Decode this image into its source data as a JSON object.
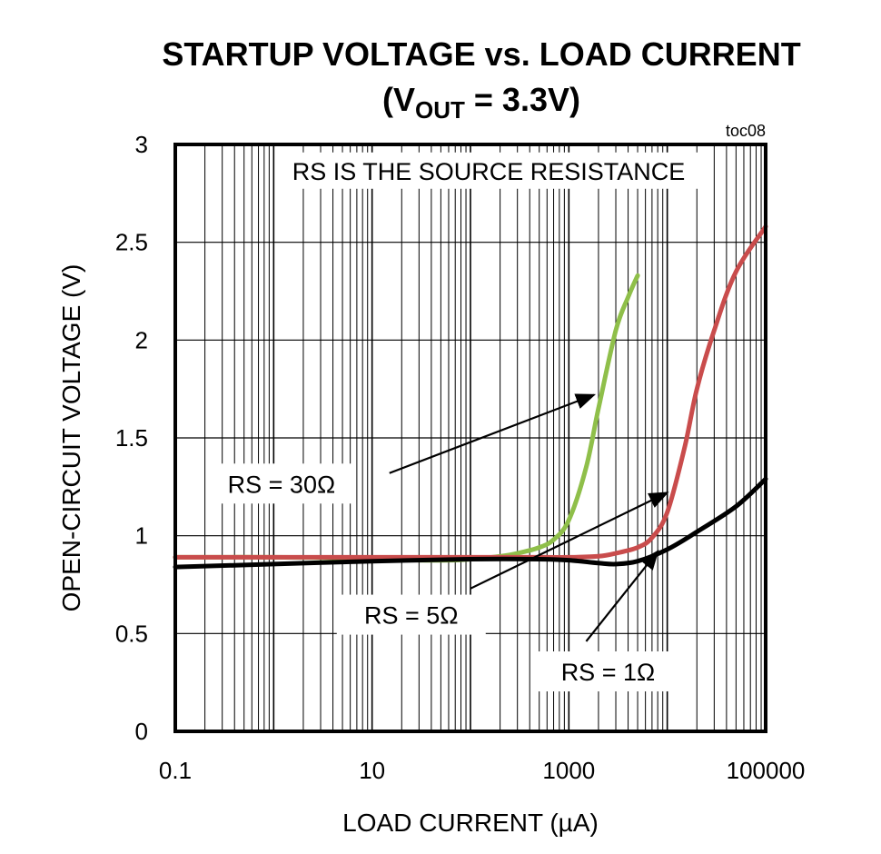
{
  "chart_data": {
    "type": "line",
    "title": "STARTUP VOLTAGE vs. LOAD CURRENT",
    "subtitle": {
      "prefix": "(V",
      "subscript": "OUT",
      "suffix": " = 3.3V)"
    },
    "tag": "toc08",
    "xlabel": "LOAD CURRENT (µA)",
    "ylabel": "OPEN-CIRCUIT VOLTAGE (V)",
    "xscale": "log",
    "xlim": [
      0.1,
      100000
    ],
    "ylim": [
      0,
      3
    ],
    "xticks": [
      {
        "value": 0.1,
        "label": "0.1"
      },
      {
        "value": 10,
        "label": "10"
      },
      {
        "value": 1000,
        "label": "1000"
      },
      {
        "value": 100000,
        "label": "100000"
      }
    ],
    "yticks": [
      {
        "value": 0,
        "label": "0"
      },
      {
        "value": 0.5,
        "label": "0.5"
      },
      {
        "value": 1,
        "label": "1"
      },
      {
        "value": 1.5,
        "label": "1.5"
      },
      {
        "value": 2,
        "label": "2"
      },
      {
        "value": 2.5,
        "label": "2.5"
      },
      {
        "value": 3,
        "label": "3"
      }
    ],
    "grid": true,
    "note": "RS IS THE SOURCE RESISTANCE",
    "series": [
      {
        "name": "RS = 30Ω",
        "color": "#8fbf4a",
        "points": [
          [
            0.1,
            0.89
          ],
          [
            1,
            0.89
          ],
          [
            10,
            0.885
          ],
          [
            30,
            0.875
          ],
          [
            60,
            0.875
          ],
          [
            100,
            0.88
          ],
          [
            200,
            0.895
          ],
          [
            300,
            0.91
          ],
          [
            500,
            0.94
          ],
          [
            700,
            0.98
          ],
          [
            1000,
            1.08
          ],
          [
            1500,
            1.35
          ],
          [
            2000,
            1.65
          ],
          [
            3000,
            2.05
          ],
          [
            4000,
            2.22
          ],
          [
            5000,
            2.33
          ]
        ]
      },
      {
        "name": "RS = 5Ω",
        "color": "#c94c4c",
        "points": [
          [
            0.1,
            0.89
          ],
          [
            1,
            0.89
          ],
          [
            10,
            0.89
          ],
          [
            100,
            0.89
          ],
          [
            500,
            0.89
          ],
          [
            1000,
            0.89
          ],
          [
            2000,
            0.895
          ],
          [
            3000,
            0.91
          ],
          [
            5000,
            0.94
          ],
          [
            7000,
            0.99
          ],
          [
            10000,
            1.12
          ],
          [
            15000,
            1.45
          ],
          [
            20000,
            1.75
          ],
          [
            30000,
            2.05
          ],
          [
            50000,
            2.35
          ],
          [
            100000,
            2.58
          ]
        ]
      },
      {
        "name": "RS = 1Ω",
        "color": "#000000",
        "points": [
          [
            0.1,
            0.84
          ],
          [
            1,
            0.855
          ],
          [
            10,
            0.87
          ],
          [
            100,
            0.88
          ],
          [
            500,
            0.88
          ],
          [
            1000,
            0.875
          ],
          [
            2000,
            0.86
          ],
          [
            3000,
            0.855
          ],
          [
            5000,
            0.87
          ],
          [
            10000,
            0.93
          ],
          [
            20000,
            1.02
          ],
          [
            50000,
            1.15
          ],
          [
            100000,
            1.29
          ]
        ]
      }
    ],
    "annotations": [
      {
        "text": "RS = 30Ω",
        "series": 0,
        "label_at": [
          1.2,
          1.22
        ],
        "arrow_from": [
          15,
          1.32
        ],
        "arrow_to": [
          1800,
          1.72
        ]
      },
      {
        "text": "RS = 5Ω",
        "series": 1,
        "label_at": [
          25,
          0.55
        ],
        "arrow_from": [
          100,
          0.73
        ],
        "arrow_to": [
          10000,
          1.22
        ]
      },
      {
        "text": "RS = 1Ω",
        "series": 2,
        "label_at": [
          2500,
          0.26
        ],
        "arrow_from": [
          1500,
          0.46
        ],
        "arrow_to": [
          8000,
          0.92
        ]
      }
    ]
  }
}
